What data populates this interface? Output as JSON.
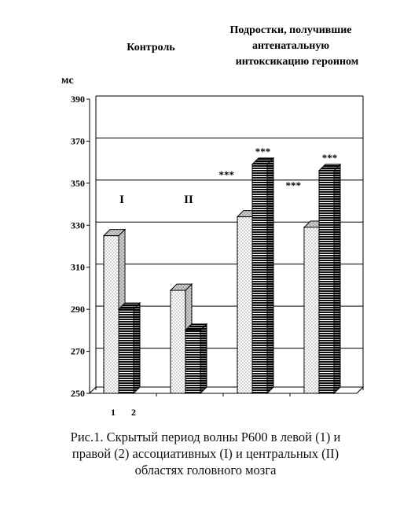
{
  "chart_data": {
    "type": "bar",
    "style": "3d",
    "ylabel": "мс",
    "ylim": [
      250,
      390
    ],
    "yticks": [
      250,
      270,
      290,
      310,
      330,
      350,
      370,
      390
    ],
    "grid": true,
    "group_labels": {
      "control": "Контроль",
      "exposed": [
        "Подростки, получившие",
        "антенатальную",
        "интоксикацию героином"
      ]
    },
    "groups": [
      {
        "roman": "I",
        "bars": [
          {
            "series": 1,
            "value": 325,
            "marker": ""
          },
          {
            "series": 2,
            "value": 290,
            "marker": ""
          }
        ]
      },
      {
        "roman": "II",
        "bars": [
          {
            "series": 1,
            "value": 299,
            "marker": ""
          },
          {
            "series": 2,
            "value": 280,
            "marker": ""
          }
        ]
      },
      {
        "roman": "",
        "bars": [
          {
            "series": 1,
            "value": 334,
            "marker": "***"
          },
          {
            "series": 2,
            "value": 359,
            "marker": "***"
          }
        ]
      },
      {
        "roman": "",
        "bars": [
          {
            "series": 1,
            "value": 329,
            "marker": "***"
          },
          {
            "series": 2,
            "value": 356,
            "marker": "***"
          }
        ]
      }
    ],
    "series_labels": [
      "1",
      "2"
    ],
    "series_patterns": [
      "dotted",
      "horizontal-stripes"
    ]
  },
  "caption": [
    "Рис.1. Скрытый период волны Р600 в левой (1) и",
    "правой (2) ассоциативных (I)  и центральных (II)",
    "областях головного мозга"
  ]
}
